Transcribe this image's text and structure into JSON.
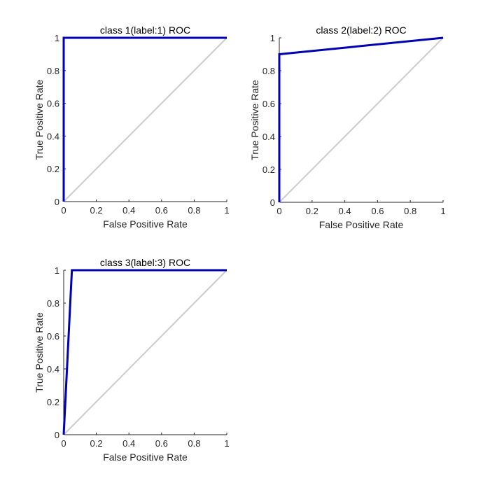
{
  "chart_data": [
    {
      "type": "line",
      "title": "class 1(label:1) ROC",
      "xlabel": "False Positive Rate",
      "ylabel": "True Positive Rate",
      "xlim": [
        0,
        1
      ],
      "ylim": [
        0,
        1
      ],
      "xticks": [
        "0",
        "0.2",
        "0.4",
        "0.6",
        "0.8",
        "1"
      ],
      "yticks": [
        "0",
        "0.2",
        "0.4",
        "0.6",
        "0.8",
        "1"
      ],
      "grid": false,
      "series": [
        {
          "x": [
            0,
            0,
            1
          ],
          "y": [
            0,
            1,
            1
          ],
          "color": "#0000b4"
        },
        {
          "x": [
            0,
            1
          ],
          "y": [
            0,
            1
          ],
          "color": "#cccccc"
        }
      ]
    },
    {
      "type": "line",
      "title": "class 2(label:2) ROC",
      "xlabel": "False Positive Rate",
      "ylabel": "True Positive Rate",
      "xlim": [
        0,
        1
      ],
      "ylim": [
        0,
        1
      ],
      "xticks": [
        "0",
        "0.2",
        "0.4",
        "0.6",
        "0.8",
        "1"
      ],
      "yticks": [
        "0",
        "0.2",
        "0.4",
        "0.6",
        "0.8",
        "1"
      ],
      "grid": false,
      "series": [
        {
          "x": [
            0,
            0,
            1
          ],
          "y": [
            0,
            0.9,
            1
          ],
          "color": "#0000b4"
        },
        {
          "x": [
            0,
            1
          ],
          "y": [
            0,
            1
          ],
          "color": "#cccccc"
        }
      ]
    },
    {
      "type": "line",
      "title": "class 3(label:3) ROC",
      "xlabel": "False Positive Rate",
      "ylabel": "True Positive Rate",
      "xlim": [
        0,
        1
      ],
      "ylim": [
        0,
        1
      ],
      "xticks": [
        "0",
        "0.2",
        "0.4",
        "0.6",
        "0.8",
        "1"
      ],
      "yticks": [
        "0",
        "0.2",
        "0.4",
        "0.6",
        "0.8",
        "1"
      ],
      "grid": false,
      "series": [
        {
          "x": [
            0,
            0.05,
            1
          ],
          "y": [
            0,
            1,
            1
          ],
          "color": "#0000b4"
        },
        {
          "x": [
            0,
            1
          ],
          "y": [
            0,
            1
          ],
          "color": "#cccccc"
        }
      ]
    }
  ]
}
